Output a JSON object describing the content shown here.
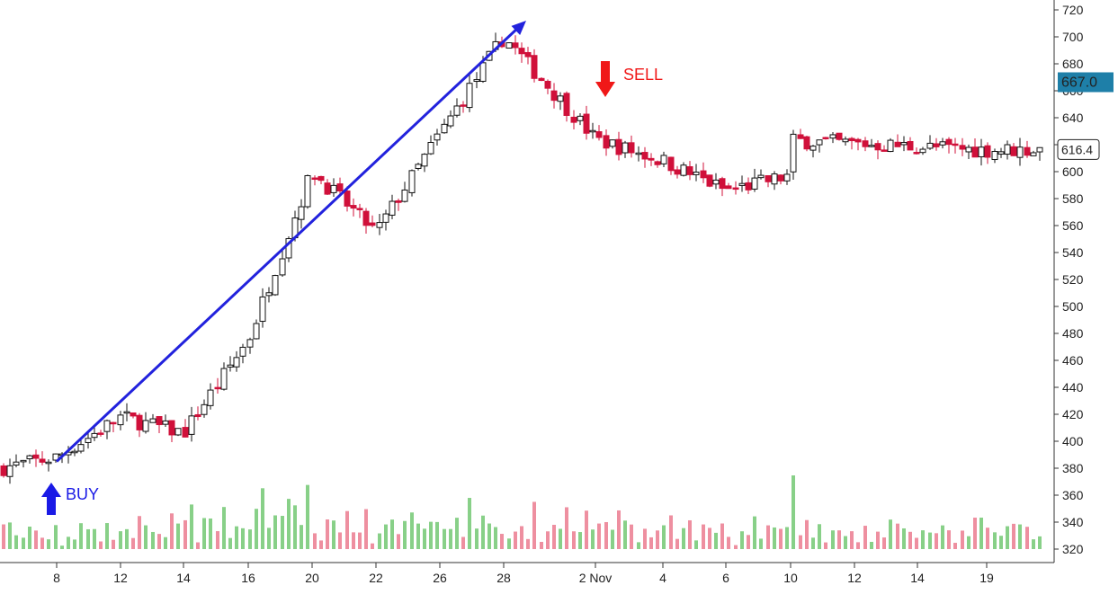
{
  "chart_data": {
    "type": "candlestick",
    "title": "",
    "xlabel": "",
    "ylabel": "",
    "ylim": [
      316,
      724
    ],
    "y_ticks": [
      320,
      340,
      360,
      380,
      400,
      420,
      440,
      460,
      480,
      500,
      520,
      540,
      560,
      580,
      600,
      620,
      640,
      660,
      680,
      700,
      720
    ],
    "x_ticks": [
      "8",
      "12",
      "14",
      "16",
      "20",
      "22",
      "26",
      "28",
      "2 Nov",
      "4",
      "6",
      "10",
      "12",
      "14",
      "19"
    ],
    "price_labels": [
      {
        "text": "667.0",
        "value": 667.0,
        "style": "filled",
        "color": "#1e7fa8"
      },
      {
        "text": "616.4",
        "value": 616.4,
        "style": "outline",
        "color": "#222222"
      }
    ],
    "up_color": "#ffffff",
    "down_color": "#d0103a",
    "volume_up_color": "#88d088",
    "volume_down_color": "#ee8fa0",
    "trend_line": {
      "color": "#2222dd",
      "from": {
        "x_tick": "8",
        "y": 385
      },
      "to": {
        "x_tick": "28",
        "y": 712
      }
    },
    "annotations": [
      {
        "text": "BUY",
        "color": "#1a1ae6",
        "direction": "up",
        "x_tick": "8",
        "y": 374
      },
      {
        "text": "SELL",
        "color": "#f01818",
        "direction": "down",
        "x_tick": "2 Nov",
        "y": 666
      }
    ],
    "close_series": [
      {
        "x": "8",
        "close": 388
      },
      {
        "x": "12",
        "close": 418
      },
      {
        "x": "14",
        "close": 406
      },
      {
        "x": "16",
        "close": 475
      },
      {
        "x": "20",
        "close": 600
      },
      {
        "x": "22",
        "close": 555
      },
      {
        "x": "26",
        "close": 628
      },
      {
        "x": "28",
        "close": 700
      },
      {
        "x": "2 Nov",
        "close": 624
      },
      {
        "x": "4",
        "close": 608
      },
      {
        "x": "6",
        "close": 586
      },
      {
        "x": "10",
        "close": 597
      },
      {
        "x": "12",
        "close": 600
      },
      {
        "x": "14",
        "close": 645
      },
      {
        "x": "19",
        "close": 616
      }
    ]
  }
}
